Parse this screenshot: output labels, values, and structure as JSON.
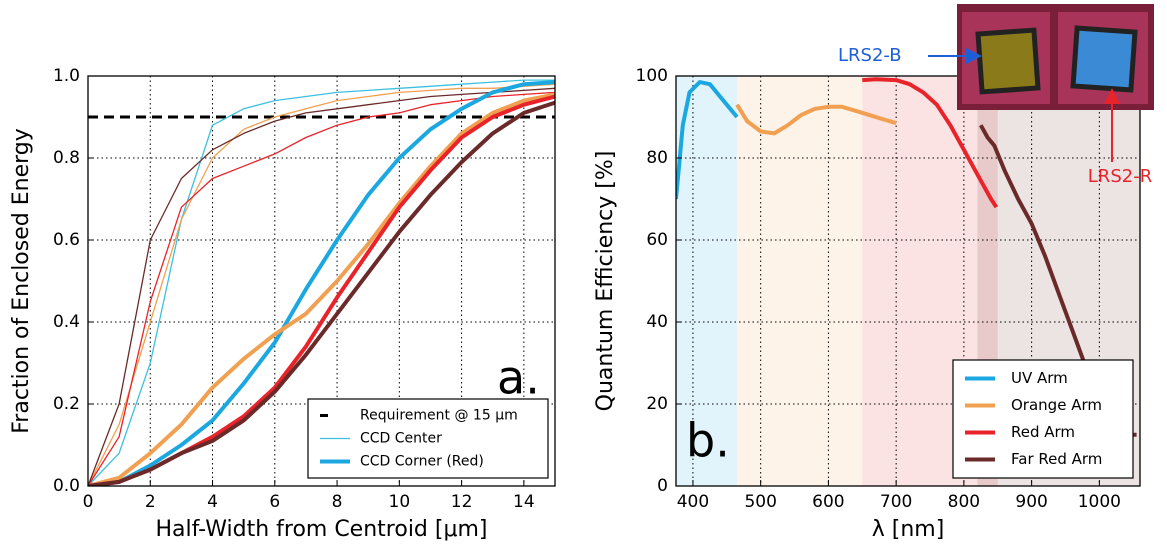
{
  "chart_data": [
    {
      "type": "line",
      "panel_label": "a.",
      "x_label": "Half-Width from Centroid [μm]",
      "y_label": "Fraction of Enclosed Energy",
      "x": [
        0,
        1,
        2,
        3,
        4,
        5,
        6,
        7,
        8,
        9,
        10,
        11,
        12,
        13,
        14,
        15
      ],
      "xlim": [
        0,
        15
      ],
      "xticks": [
        0,
        2,
        4,
        6,
        8,
        10,
        12,
        14
      ],
      "ylim": [
        0,
        1
      ],
      "yticks": [
        {
          "value": 0,
          "label": "0.0"
        },
        0.2,
        0.4,
        0.6,
        0.8,
        {
          "value": 1,
          "label": "1.0"
        }
      ],
      "grid": true,
      "legend": "lower right",
      "reference_line": {
        "name": "Requirement @ 15 μm",
        "value": 0.9,
        "color": "#000000"
      },
      "series": [
        {
          "name": "CCD Center",
          "color": "#3cc0e0",
          "linewidth": 1.3,
          "values": [
            0,
            0.08,
            0.3,
            0.65,
            0.88,
            0.92,
            0.94,
            0.95,
            0.96,
            0.965,
            0.97,
            0.975,
            0.98,
            0.985,
            0.99,
            0.99
          ]
        },
        {
          "color": "#f0a050",
          "linewidth": 1.3,
          "values": [
            0,
            0.15,
            0.4,
            0.65,
            0.8,
            0.87,
            0.9,
            0.92,
            0.94,
            0.95,
            0.96,
            0.965,
            0.97,
            0.97,
            0.975,
            0.98
          ]
        },
        {
          "color": "#e8232a",
          "linewidth": 1.3,
          "values": [
            0,
            0.12,
            0.45,
            0.68,
            0.75,
            0.78,
            0.81,
            0.85,
            0.88,
            0.9,
            0.91,
            0.93,
            0.94,
            0.95,
            0.955,
            0.96
          ]
        },
        {
          "color": "#6b2a2a",
          "linewidth": 1.3,
          "values": [
            0,
            0.2,
            0.6,
            0.75,
            0.82,
            0.86,
            0.89,
            0.91,
            0.92,
            0.93,
            0.94,
            0.95,
            0.955,
            0.96,
            0.965,
            0.97
          ]
        },
        {
          "name": "CCD Corner (Red)",
          "color": "#1ba7e0",
          "linewidth": 4,
          "values": [
            0,
            0.01,
            0.05,
            0.1,
            0.16,
            0.25,
            0.35,
            0.48,
            0.6,
            0.71,
            0.8,
            0.87,
            0.92,
            0.96,
            0.98,
            0.985
          ]
        },
        {
          "color": "#f0a050",
          "linewidth": 4,
          "values": [
            0,
            0.02,
            0.08,
            0.15,
            0.24,
            0.31,
            0.37,
            0.42,
            0.5,
            0.59,
            0.69,
            0.78,
            0.86,
            0.91,
            0.94,
            0.955
          ]
        },
        {
          "color": "#e8232a",
          "linewidth": 4,
          "values": [
            0,
            0.01,
            0.04,
            0.08,
            0.12,
            0.17,
            0.24,
            0.34,
            0.46,
            0.57,
            0.68,
            0.77,
            0.85,
            0.9,
            0.93,
            0.95
          ]
        },
        {
          "color": "#6b2a2a",
          "linewidth": 4,
          "values": [
            0,
            0.01,
            0.04,
            0.08,
            0.11,
            0.16,
            0.23,
            0.32,
            0.42,
            0.52,
            0.62,
            0.71,
            0.79,
            0.86,
            0.91,
            0.935
          ]
        }
      ]
    },
    {
      "type": "line",
      "panel_label": "b.",
      "x_label": "λ [nm]",
      "y_label": "Quantum Efficiency [%]",
      "xlim": [
        375,
        1060
      ],
      "xticks": [
        400,
        500,
        600,
        700,
        800,
        900,
        1000
      ],
      "ylim": [
        0,
        100
      ],
      "yticks": [
        0,
        20,
        40,
        60,
        80,
        100
      ],
      "grid": true,
      "legend": "lower right",
      "annotations": [
        {
          "text": "LRS2-B",
          "color": "#1f5fd6"
        },
        {
          "text": "LRS2-R",
          "color": "#e8232a"
        }
      ],
      "series": [
        {
          "name": "UV Arm",
          "color": "#1ba7e0",
          "band": [
            375,
            465
          ],
          "x": [
            375,
            385,
            395,
            410,
            425,
            440,
            455,
            465
          ],
          "values": [
            70,
            88,
            96,
            98.5,
            98,
            95,
            92,
            90
          ]
        },
        {
          "name": "Orange Arm",
          "color": "#f0a050",
          "band": [
            465,
            650
          ],
          "x": [
            465,
            480,
            500,
            520,
            540,
            560,
            580,
            600,
            620,
            640,
            660,
            680,
            700
          ],
          "values": [
            93,
            89,
            86.5,
            86,
            88,
            90.5,
            92,
            92.5,
            92.5,
            91.5,
            90.5,
            89.5,
            88.5
          ]
        },
        {
          "name": "Red Arm",
          "color": "#e8232a",
          "band": [
            650,
            850
          ],
          "x": [
            650,
            670,
            700,
            720,
            740,
            760,
            780,
            800,
            820,
            840,
            848
          ],
          "values": [
            99,
            99.2,
            99,
            98,
            96,
            93,
            88,
            82,
            76,
            70,
            68
          ]
        },
        {
          "name": "Far Red Arm",
          "color": "#6b2a2a",
          "band": [
            820,
            1060
          ],
          "x": [
            825,
            835,
            845,
            860,
            880,
            900,
            920,
            940,
            960,
            980,
            1000,
            1020,
            1035,
            1055
          ],
          "values": [
            88,
            85,
            83,
            77,
            70,
            64,
            56,
            47,
            38,
            29,
            21,
            15,
            12.5,
            12.5
          ]
        }
      ]
    }
  ]
}
